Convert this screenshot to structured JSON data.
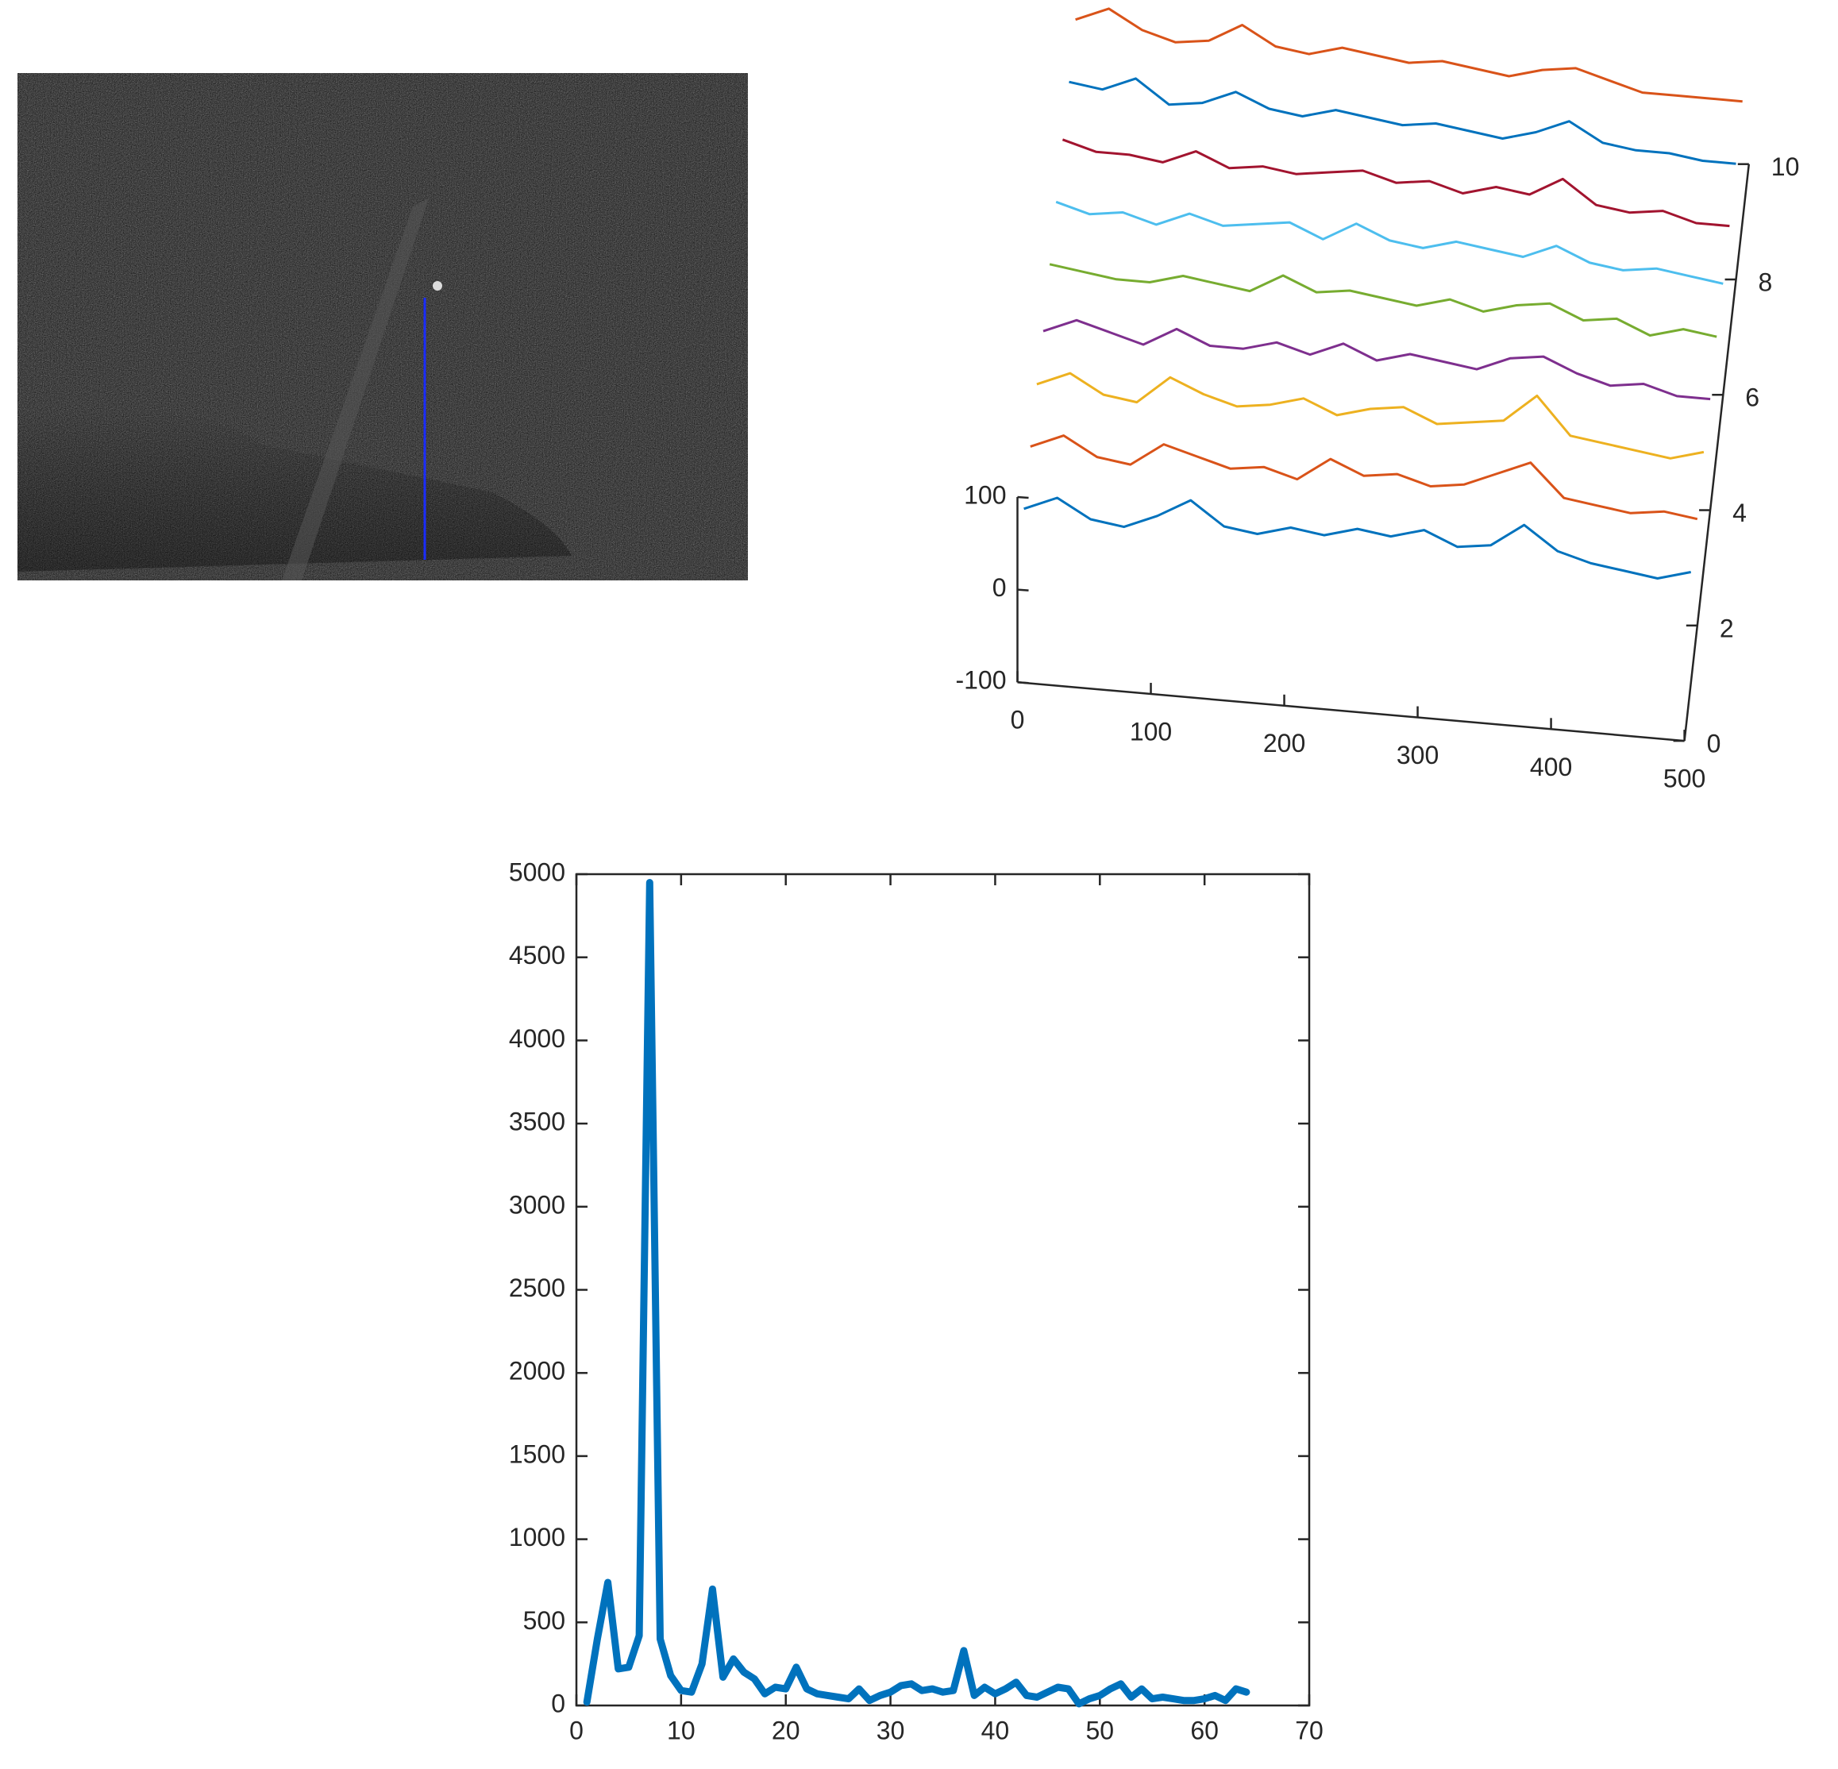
{
  "chart_data": [
    {
      "type": "waterfall3d",
      "x": [
        0,
        25,
        50,
        75,
        100,
        125,
        150,
        175,
        200,
        225,
        250,
        275,
        300,
        325,
        350,
        375,
        400,
        425,
        450,
        475,
        500
      ],
      "series": [
        {
          "color": "#0072BD",
          "y": 1,
          "values": [
            25,
            40,
            20,
            15,
            30,
            50,
            25,
            20,
            30,
            25,
            35,
            30,
            40,
            25,
            30,
            55,
            30,
            20,
            15,
            10,
            20
          ]
        },
        {
          "color": "#D95319",
          "y": 2,
          "values": [
            30,
            45,
            25,
            20,
            45,
            35,
            25,
            30,
            20,
            45,
            30,
            35,
            25,
            30,
            45,
            60,
            25,
            20,
            15,
            20,
            15
          ]
        },
        {
          "color": "#EDB120",
          "y": 3,
          "values": [
            35,
            50,
            30,
            25,
            55,
            40,
            30,
            35,
            45,
            30,
            40,
            45,
            30,
            35,
            40,
            70,
            30,
            25,
            20,
            15,
            25
          ]
        },
        {
          "color": "#7E2F8E",
          "y": 4,
          "values": [
            30,
            45,
            35,
            25,
            45,
            30,
            30,
            40,
            30,
            45,
            30,
            40,
            35,
            30,
            45,
            50,
            35,
            25,
            30,
            20,
            20
          ]
        },
        {
          "color": "#77AC30",
          "y": 5,
          "values": [
            40,
            35,
            30,
            30,
            40,
            35,
            30,
            50,
            35,
            40,
            35,
            30,
            40,
            30,
            40,
            45,
            30,
            35,
            20,
            30,
            25
          ]
        },
        {
          "color": "#4DBEEE",
          "y": 6,
          "values": [
            45,
            35,
            40,
            30,
            45,
            35,
            40,
            45,
            30,
            50,
            35,
            30,
            40,
            35,
            30,
            45,
            30,
            25,
            30,
            25,
            20
          ]
        },
        {
          "color": "#A2142F",
          "y": 7,
          "values": [
            50,
            40,
            40,
            35,
            50,
            35,
            40,
            35,
            40,
            45,
            35,
            40,
            30,
            40,
            35,
            55,
            30,
            25,
            30,
            20,
            20
          ]
        },
        {
          "color": "#0072BD",
          "y": 8,
          "values": [
            50,
            45,
            60,
            35,
            40,
            55,
            40,
            35,
            45,
            40,
            35,
            40,
            35,
            30,
            40,
            55,
            35,
            30,
            30,
            25,
            25
          ]
        },
        {
          "color": "#D95319",
          "y": 9,
          "values": [
            55,
            70,
            50,
            40,
            45,
            65,
            45,
            40,
            50,
            45,
            40,
            45,
            40,
            35,
            45,
            50,
            40,
            30,
            30,
            30,
            30
          ]
        }
      ],
      "xlim": [
        0,
        500
      ],
      "xticks": [
        0,
        100,
        200,
        300,
        400,
        500
      ],
      "ylim": [
        0,
        10
      ],
      "yticks": [
        0,
        2,
        4,
        6,
        8,
        10
      ],
      "zlim": [
        -100,
        100
      ],
      "zticks": [
        -100,
        0,
        100
      ]
    },
    {
      "type": "line",
      "x": [
        1,
        2,
        3,
        4,
        5,
        6,
        7,
        8,
        9,
        10,
        11,
        12,
        13,
        14,
        15,
        16,
        17,
        18,
        19,
        20,
        21,
        22,
        23,
        24,
        25,
        26,
        27,
        28,
        29,
        30,
        31,
        32,
        33,
        34,
        35,
        36,
        37,
        38,
        39,
        40,
        41,
        42,
        43,
        44,
        45,
        46,
        47,
        48,
        49,
        50,
        51,
        52,
        53,
        54,
        55,
        56,
        57,
        58,
        59,
        60,
        61,
        62,
        63,
        64
      ],
      "series": [
        {
          "color": "#0072BD",
          "values": [
            20,
            400,
            740,
            220,
            230,
            420,
            4950,
            400,
            180,
            90,
            80,
            250,
            700,
            170,
            280,
            200,
            160,
            70,
            110,
            100,
            230,
            100,
            70,
            60,
            50,
            40,
            100,
            30,
            60,
            80,
            120,
            130,
            90,
            100,
            80,
            90,
            330,
            60,
            110,
            70,
            100,
            140,
            60,
            50,
            80,
            110,
            100,
            10,
            40,
            60,
            100,
            130,
            50,
            100,
            40,
            50,
            40,
            30,
            30,
            40,
            60,
            30,
            100,
            80
          ]
        }
      ],
      "xlim": [
        0,
        70
      ],
      "xticks": [
        0,
        10,
        20,
        30,
        40,
        50,
        60,
        70
      ],
      "ylim": [
        0,
        5000
      ],
      "yticks": [
        0,
        500,
        1000,
        1500,
        2000,
        2500,
        3000,
        3500,
        4000,
        4500,
        5000
      ]
    }
  ]
}
